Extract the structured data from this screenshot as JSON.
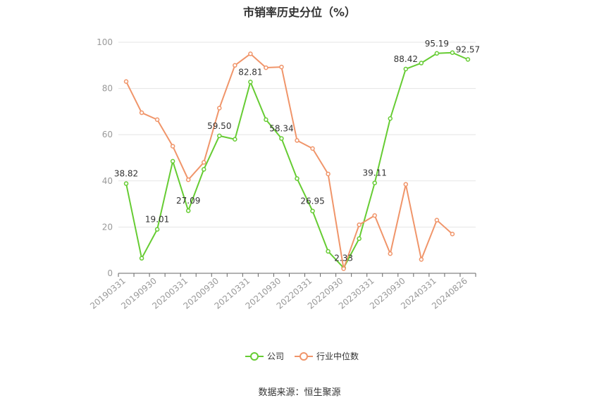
{
  "title": "市销率历史分位（%）",
  "source": "数据来源：恒生聚源",
  "colors": {
    "company": "#66cc33",
    "industry": "#f0956a",
    "grid": "#e5e5e5",
    "axis": "#666666"
  },
  "legend_position": "bottom-center",
  "chart_data": {
    "type": "line",
    "ylim": [
      0,
      100
    ],
    "yticks": [
      0,
      20,
      40,
      60,
      80,
      100
    ],
    "grid": true,
    "xtick_labels": [
      "20190331",
      "20190930",
      "20200331",
      "20200930",
      "20210331",
      "20210930",
      "20220331",
      "20220930",
      "20230331",
      "20230930",
      "20240331",
      "20240826"
    ],
    "x": [
      "20190331",
      "20190630",
      "20190930",
      "20191231",
      "20200331",
      "20200630",
      "20200930",
      "20201231",
      "20210331",
      "20210630",
      "20210930",
      "20211231",
      "20220331",
      "20220630",
      "20220930",
      "20221231",
      "20230331",
      "20230630",
      "20230930",
      "20231231",
      "20240331",
      "20240630",
      "20240826"
    ],
    "series": [
      {
        "name": "公司",
        "color": "#66cc33",
        "values": [
          38.82,
          6.5,
          19.01,
          48.5,
          27.09,
          45.0,
          59.5,
          58.0,
          82.81,
          66.5,
          58.34,
          41.0,
          26.95,
          9.5,
          2.33,
          15.0,
          39.11,
          67.0,
          88.42,
          91.0,
          95.19,
          95.5,
          92.57
        ],
        "labels": [
          "38.82",
          "",
          "19.01",
          "",
          "27.09",
          "",
          "59.50",
          "",
          "82.81",
          "",
          "58.34",
          "",
          "26.95",
          "",
          "2.33",
          "",
          "39.11",
          "",
          "88.42",
          "",
          "95.19",
          "",
          "92.57"
        ]
      },
      {
        "name": "行业中位数",
        "color": "#f0956a",
        "values": [
          83.0,
          69.5,
          66.5,
          55.0,
          40.5,
          48.0,
          71.5,
          90.0,
          95.0,
          89.0,
          89.3,
          57.5,
          54.0,
          43.0,
          2.0,
          21.0,
          25.0,
          8.5,
          38.5,
          6.0,
          23.0,
          17.0,
          null
        ]
      }
    ]
  }
}
